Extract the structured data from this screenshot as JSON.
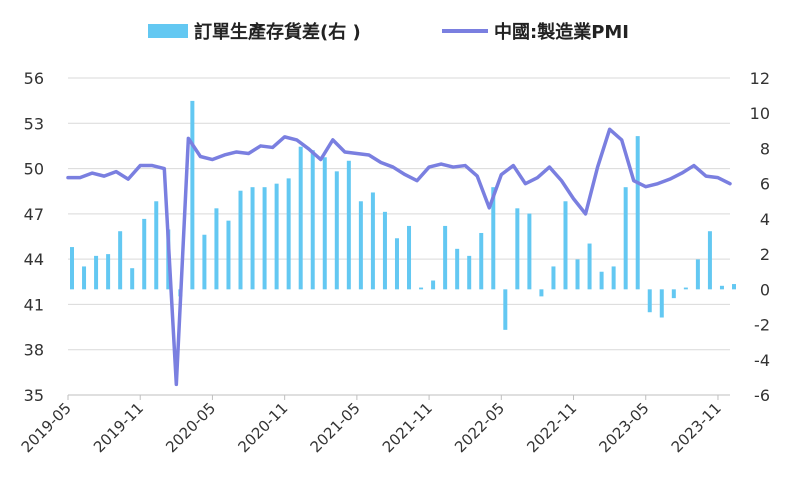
{
  "chart_data": {
    "type": "bar+line",
    "legend": {
      "placement": "top-center",
      "bar_label": "訂單生產存貨差(右 )",
      "line_label": "中國:製造業PMI"
    },
    "colors": {
      "bar": "#63c8f2",
      "line": "#7a7fe0",
      "grid": "#d9d9d9",
      "axis": "#bfbfbf"
    },
    "grid": true,
    "left_axis": {
      "ylim": [
        35,
        56
      ],
      "ticks": [
        "35",
        "38",
        "41",
        "44",
        "47",
        "50",
        "53",
        "56"
      ]
    },
    "right_axis": {
      "ylim": [
        -6,
        12
      ],
      "ticks": [
        "-6",
        "-4",
        "-2",
        "0",
        "2",
        "4",
        "6",
        "8",
        "10",
        "12"
      ]
    },
    "x_tick_labels": [
      "2019-05",
      "2019-11",
      "2020-05",
      "2020-11",
      "2021-05",
      "2021-11",
      "2022-05",
      "2022-11",
      "2023-05",
      "2023-11"
    ],
    "x": [
      "2019-05",
      "2019-06",
      "2019-07",
      "2019-08",
      "2019-09",
      "2019-10",
      "2019-11",
      "2019-12",
      "2020-01",
      "2020-02",
      "2020-03",
      "2020-04",
      "2020-05",
      "2020-06",
      "2020-07",
      "2020-08",
      "2020-09",
      "2020-10",
      "2020-11",
      "2020-12",
      "2021-01",
      "2021-02",
      "2021-03",
      "2021-04",
      "2021-05",
      "2021-06",
      "2021-07",
      "2021-08",
      "2021-09",
      "2021-10",
      "2021-11",
      "2021-12",
      "2022-01",
      "2022-02",
      "2022-03",
      "2022-04",
      "2022-05",
      "2022-06",
      "2022-07",
      "2022-08",
      "2022-09",
      "2022-10",
      "2022-11",
      "2022-12",
      "2023-01",
      "2023-02",
      "2023-03",
      "2023-04",
      "2023-05",
      "2023-06",
      "2023-07",
      "2023-08",
      "2023-09",
      "2023-10",
      "2023-11",
      "2023-12"
    ],
    "series": [
      {
        "name": "訂單生產存貨差(右 )",
        "kind": "bar",
        "axis": "right",
        "values": [
          2.4,
          1.3,
          1.9,
          2.0,
          3.3,
          1.2,
          4.0,
          5.0,
          3.4,
          -0.4,
          10.7,
          3.1,
          4.6,
          3.9,
          5.6,
          5.8,
          5.8,
          6.0,
          6.3,
          8.1,
          7.9,
          7.5,
          6.7,
          7.3,
          5.0,
          5.5,
          4.4,
          2.9,
          3.6,
          0.1,
          0.5,
          3.6,
          2.3,
          1.9,
          3.2,
          5.8,
          -2.3,
          4.6,
          4.3,
          -0.4,
          1.3,
          5.0,
          1.7,
          2.6,
          1.0,
          1.3,
          5.8,
          8.7,
          -1.3,
          -1.6,
          -0.5,
          0.1,
          1.7,
          3.3,
          0.2,
          0.3
        ]
      },
      {
        "name": "中國:製造業PMI",
        "kind": "line",
        "axis": "left",
        "values": [
          49.4,
          49.4,
          49.7,
          49.5,
          49.8,
          49.3,
          50.2,
          50.2,
          50.0,
          35.7,
          52.0,
          50.8,
          50.6,
          50.9,
          51.1,
          51.0,
          51.5,
          51.4,
          52.1,
          51.9,
          51.3,
          50.6,
          51.9,
          51.1,
          51.0,
          50.9,
          50.4,
          50.1,
          49.6,
          49.2,
          50.1,
          50.3,
          50.1,
          50.2,
          49.5,
          47.4,
          49.6,
          50.2,
          49.0,
          49.4,
          50.1,
          49.2,
          48.0,
          47.0,
          50.1,
          52.6,
          51.9,
          49.2,
          48.8,
          49.0,
          49.3,
          49.7,
          50.2,
          49.5,
          49.4,
          49.0
        ]
      }
    ]
  }
}
